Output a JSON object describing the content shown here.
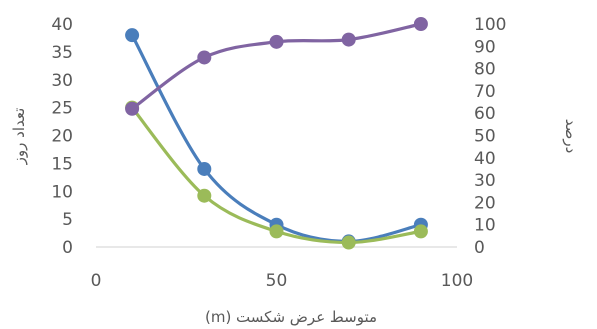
{
  "chart_data": {
    "type": "scatter",
    "title": "",
    "xlabel": "متوسط عرض شکست (m)",
    "ylabel_left": "تعداد روز",
    "ylabel_right": "درصد",
    "xlim": [
      0,
      100
    ],
    "ylim_left": [
      0,
      40
    ],
    "ylim_right": [
      0,
      100
    ],
    "x_ticks": [
      "0",
      "50",
      "100"
    ],
    "y_left_ticks": [
      "0",
      "5",
      "10",
      "15",
      "20",
      "25",
      "30",
      "35",
      "40"
    ],
    "y_right_ticks": [
      "0",
      "10",
      "20",
      "30",
      "40",
      "50",
      "60",
      "70",
      "80",
      "90",
      "100"
    ],
    "smooth_lines": true,
    "grid": false,
    "legend": "none",
    "series": [
      {
        "axis": "left",
        "color": "#4a7ebb",
        "x": [
          10,
          30,
          50,
          70,
          90
        ],
        "y": [
          38,
          14,
          4,
          1,
          4
        ]
      },
      {
        "axis": "left",
        "color": "#9bbb59",
        "x": [
          10,
          30,
          50,
          70,
          90
        ],
        "y": [
          25,
          9.2,
          2.8,
          0.8,
          2.8
        ]
      },
      {
        "axis": "right",
        "color": "#8064a2",
        "x": [
          10,
          30,
          50,
          70,
          90
        ],
        "y": [
          62,
          85,
          92,
          93,
          100
        ]
      }
    ]
  }
}
